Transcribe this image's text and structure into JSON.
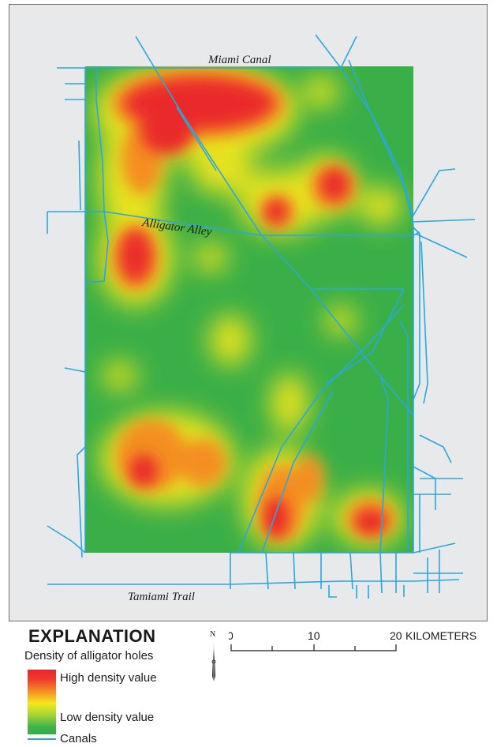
{
  "map": {
    "labels": {
      "miami_canal": "Miami Canal",
      "alligator_alley": "Alligator Alley",
      "tamiami_trail": "Tamiami Trail"
    },
    "colors": {
      "high": "#e8262b",
      "mid": "#f4e81c",
      "low": "#35ad46",
      "canal": "#2aa7dd",
      "background": "#e8e9ea"
    }
  },
  "legend": {
    "title": "EXPLANATION",
    "subtitle": "Density of alligator holes",
    "high_label": "High density value",
    "low_label": "Low density value",
    "canals_label": "Canals"
  },
  "north_arrow": {
    "label": "N"
  },
  "scale": {
    "ticks": [
      "0",
      "10",
      "20"
    ],
    "unit": "KILOMETERS"
  }
}
